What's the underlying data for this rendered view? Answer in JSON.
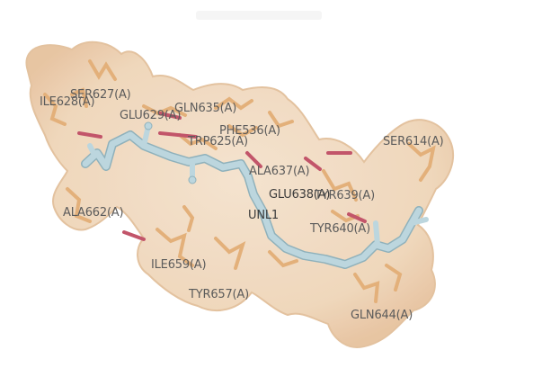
{
  "image": {
    "subject": "protein-ligand docking pose",
    "colors": {
      "background": "#ffffff",
      "surface": "#f0d9c0",
      "surface_edge": "#e2bf9a",
      "residue_stick": "#e3b07a",
      "ligand": "#b9d4dc",
      "ligand_edge": "#8fb1bb",
      "hbond": "#c2556a"
    },
    "ligand_label": "UNL1",
    "residue_labels": [
      {
        "id": "ser627",
        "text": "SER627(A)"
      },
      {
        "id": "ile628",
        "text": "ILE628(A)"
      },
      {
        "id": "gln635",
        "text": "GLN635(A)"
      },
      {
        "id": "glu629",
        "text": "GLU629(A)"
      },
      {
        "id": "phe536",
        "text": "PHE536(A)"
      },
      {
        "id": "trp625",
        "text": "TRP625(A)"
      },
      {
        "id": "ser614",
        "text": "SER614(A)"
      },
      {
        "id": "ala637",
        "text": "ALA637(A)"
      },
      {
        "id": "glu638",
        "text": "GLU638(A)"
      },
      {
        "id": "tyr639",
        "text": "TYR639(A)"
      },
      {
        "id": "ala662",
        "text": "ALA662(A)"
      },
      {
        "id": "tyr640",
        "text": "TYR640(A)"
      },
      {
        "id": "ile659",
        "text": "ILE659(A)"
      },
      {
        "id": "tyr657",
        "text": "TYR657(A)"
      },
      {
        "id": "gln644",
        "text": "GLN644(A)"
      }
    ]
  }
}
